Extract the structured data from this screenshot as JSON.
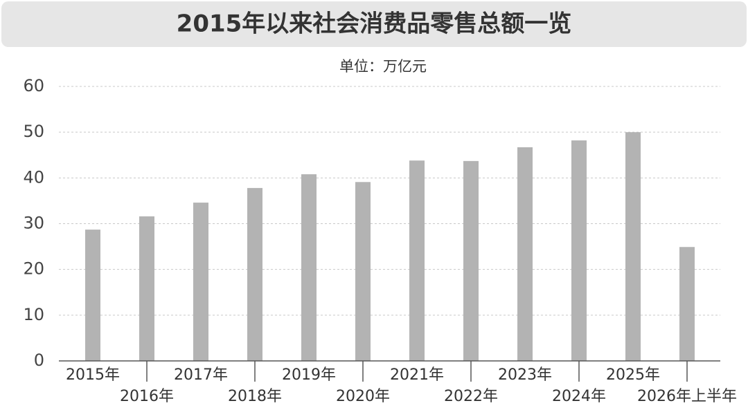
{
  "chart_data": {
    "type": "bar",
    "title": "2015年以来社会消费品零售总额一览",
    "subtitle": "单位：万亿元",
    "categories": [
      "2015年",
      "2016年",
      "2017年",
      "2018年",
      "2019年",
      "2020年",
      "2021年",
      "2022年",
      "2023年",
      "2024年",
      "2025年",
      "2026年上半年"
    ],
    "values": [
      28.7,
      31.6,
      34.6,
      37.8,
      40.8,
      39.1,
      43.8,
      43.7,
      46.7,
      48.2,
      50.0,
      24.9
    ],
    "color": "#b3b3b3",
    "ylim": [
      0,
      60
    ],
    "yticks": [
      0,
      10,
      20,
      30,
      40,
      50,
      60
    ],
    "grid": true
  }
}
